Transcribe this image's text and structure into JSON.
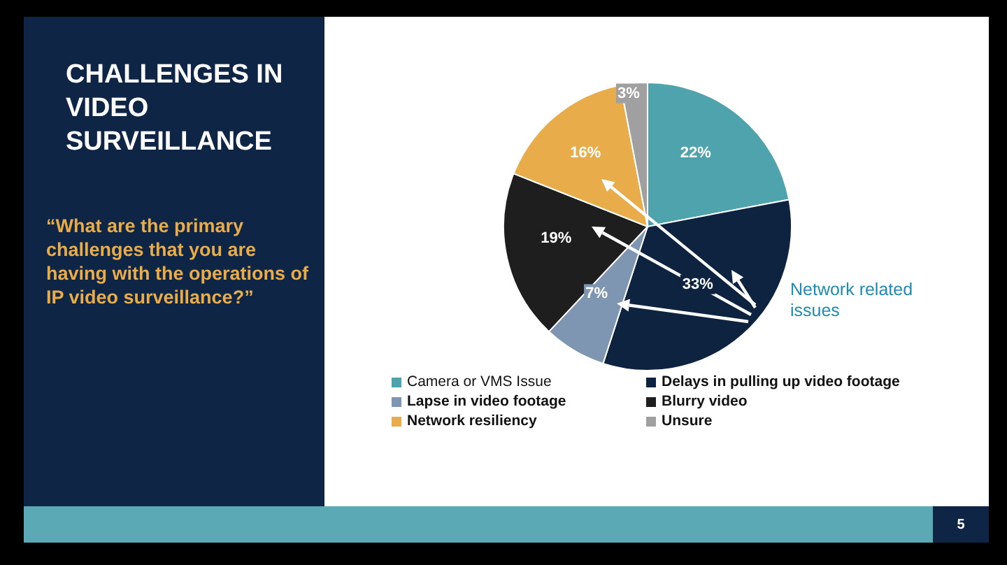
{
  "chart_data": {
    "type": "pie",
    "title": "CHALLENGES IN VIDEO SURVEILLANCE",
    "subtitle": "“What are the primary challenges that you are having with the operations of IP video surveillance?”",
    "categories": [
      "Camera or VMS Issue",
      "Delays in pulling up video footage",
      "Lapse in video footage",
      "Blurry video",
      "Network resiliency",
      "Unsure"
    ],
    "values": [
      22,
      33,
      7,
      19,
      16,
      3
    ],
    "colors": [
      "#4fa3ad",
      "#0d2340",
      "#7f96b3",
      "#1e1e1e",
      "#e8ad4a",
      "#a0a0a0"
    ],
    "value_labels": [
      "22%",
      "33%",
      "7%",
      "19%",
      "16%",
      "3%"
    ],
    "legend": "bottom",
    "annotations": [
      "Network related issues",
      "5"
    ]
  }
}
